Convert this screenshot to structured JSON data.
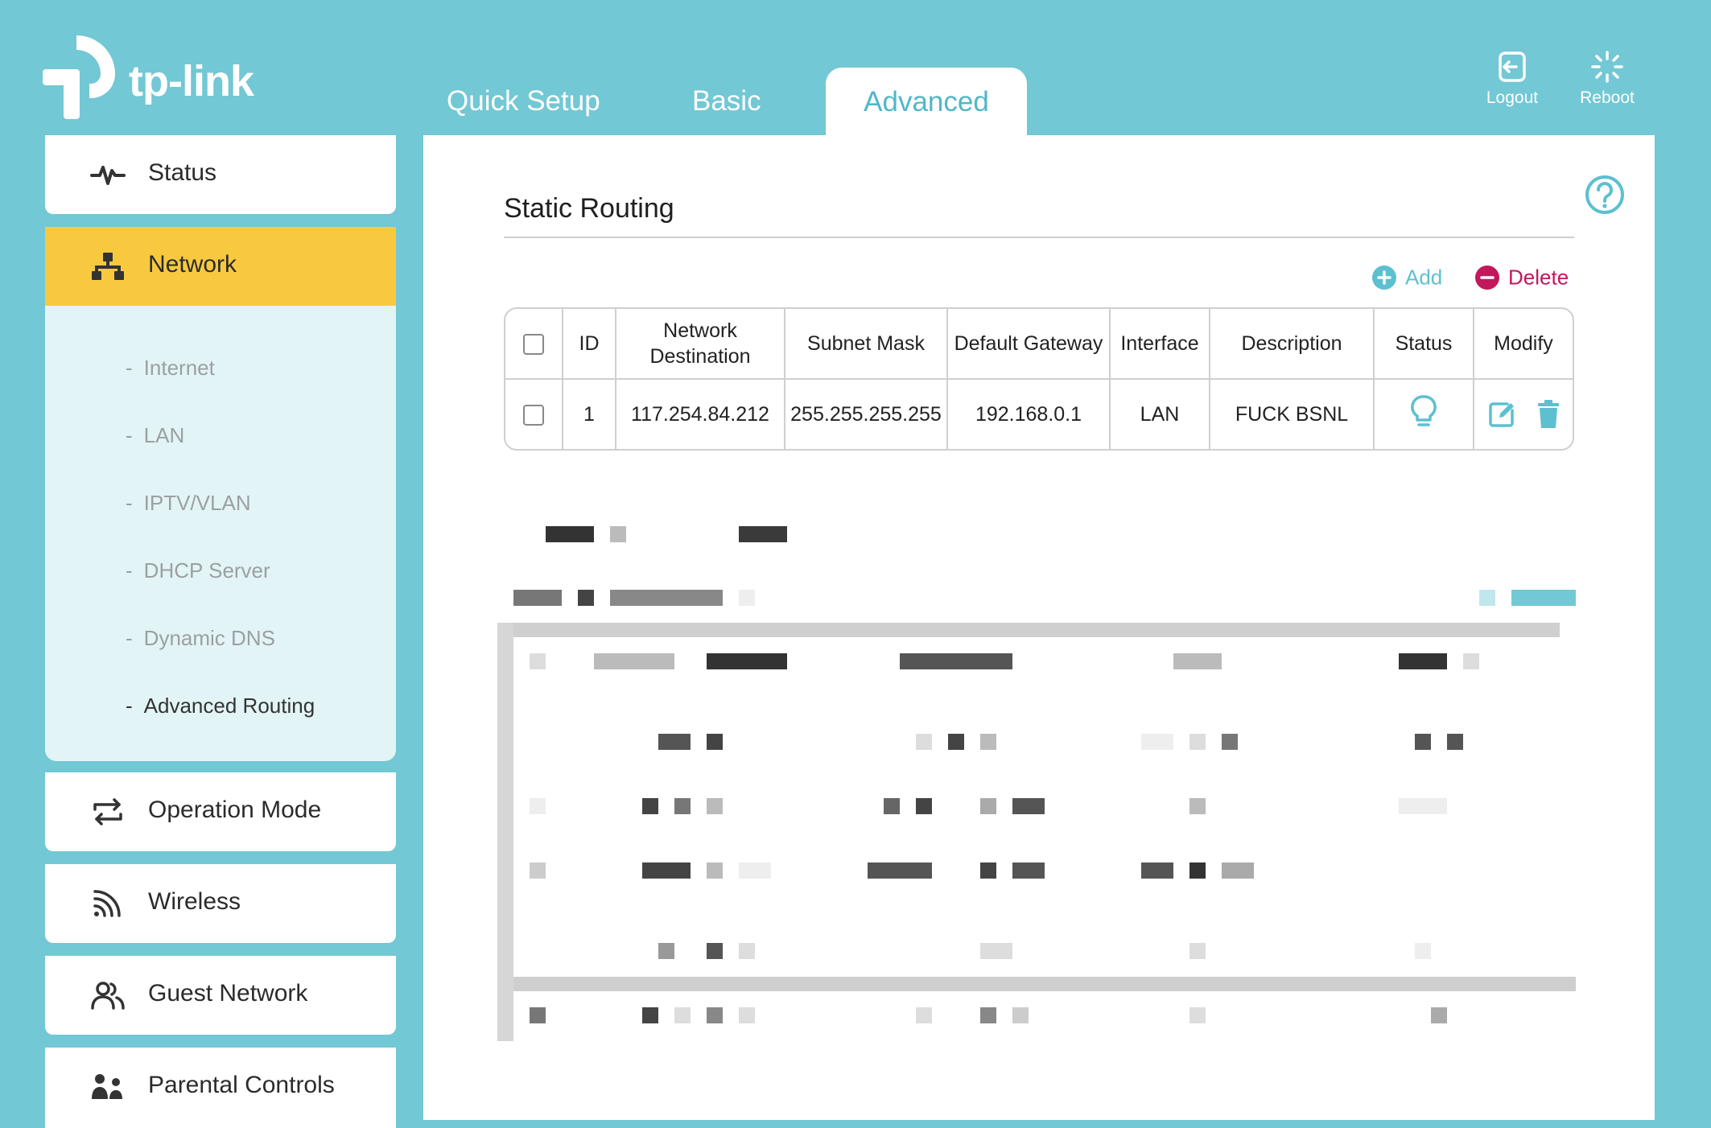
{
  "brand": {
    "name": "tp-link"
  },
  "tabs": [
    {
      "label": "Quick Setup"
    },
    {
      "label": "Basic"
    },
    {
      "label": "Advanced",
      "active": true
    }
  ],
  "header_actions": {
    "logout": "Logout",
    "reboot": "Reboot"
  },
  "sidebar": {
    "items": [
      {
        "label": "Status",
        "icon": "pulse-icon"
      },
      {
        "label": "Network",
        "icon": "network-icon",
        "active": true
      },
      {
        "label": "Operation Mode",
        "icon": "operation-mode-icon"
      },
      {
        "label": "Wireless",
        "icon": "wireless-icon"
      },
      {
        "label": "Guest Network",
        "icon": "guest-network-icon"
      },
      {
        "label": "Parental Controls",
        "icon": "parental-controls-icon"
      }
    ],
    "network_sub": [
      {
        "label": "Internet"
      },
      {
        "label": "LAN"
      },
      {
        "label": "IPTV/VLAN"
      },
      {
        "label": "DHCP Server"
      },
      {
        "label": "Dynamic DNS"
      },
      {
        "label": "Advanced Routing",
        "active": true
      }
    ]
  },
  "main": {
    "title": "Static Routing",
    "add_label": "Add",
    "delete_label": "Delete",
    "table": {
      "headers": [
        "ID",
        "Network Destination",
        "Subnet Mask",
        "Default Gateway",
        "Interface",
        "Description",
        "Status",
        "Modify"
      ],
      "rows": [
        {
          "id": "1",
          "destination": "117.254.84.212",
          "subnet": "255.255.255.255",
          "gateway": "192.168.0.1",
          "interface": "LAN",
          "description": "FUCK BSNL"
        }
      ]
    }
  },
  "colors": {
    "background": "#72c8d4",
    "accent": "#4fb8c9",
    "active_nav": "#f8c93f",
    "delete": "#c2185b"
  }
}
